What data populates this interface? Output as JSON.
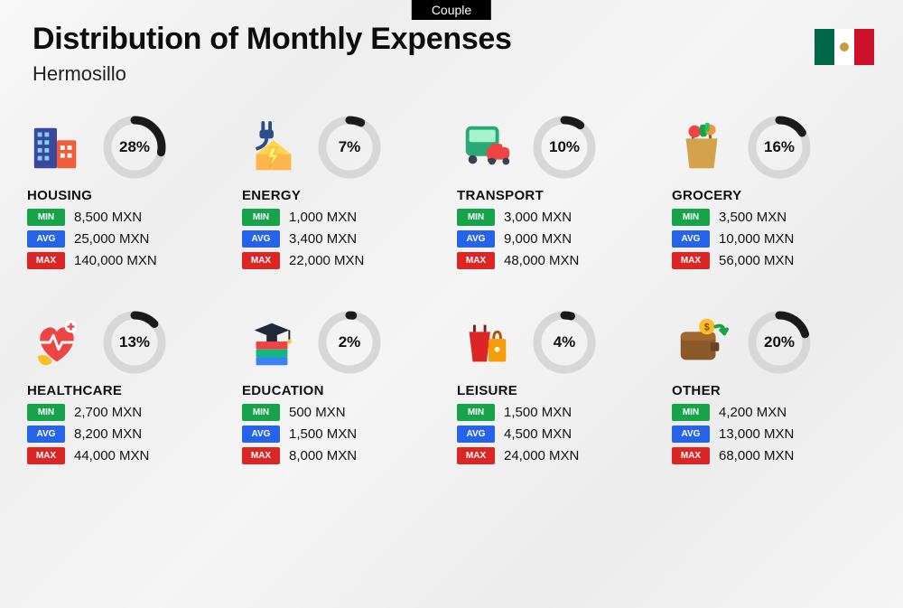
{
  "badge": "Couple",
  "title": "Distribution of Monthly Expenses",
  "subtitle": "Hermosillo",
  "currency": "MXN",
  "labels": {
    "min": "MIN",
    "avg": "AVG",
    "max": "MAX"
  },
  "ring": {
    "track": "#d7d7d7",
    "progress": "#1a1a1a",
    "stroke_width": 9,
    "radius": 30
  },
  "pill_colors": {
    "min": "#16a34a",
    "avg": "#2563eb",
    "max": "#dc2626"
  },
  "categories": [
    {
      "key": "housing",
      "name": "HOUSING",
      "pct": 28,
      "min": "8,500",
      "avg": "25,000",
      "max": "140,000"
    },
    {
      "key": "energy",
      "name": "ENERGY",
      "pct": 7,
      "min": "1,000",
      "avg": "3,400",
      "max": "22,000"
    },
    {
      "key": "transport",
      "name": "TRANSPORT",
      "pct": 10,
      "min": "3,000",
      "avg": "9,000",
      "max": "48,000"
    },
    {
      "key": "grocery",
      "name": "GROCERY",
      "pct": 16,
      "min": "3,500",
      "avg": "10,000",
      "max": "56,000"
    },
    {
      "key": "healthcare",
      "name": "HEALTHCARE",
      "pct": 13,
      "min": "2,700",
      "avg": "8,200",
      "max": "44,000"
    },
    {
      "key": "education",
      "name": "EDUCATION",
      "pct": 2,
      "min": "500",
      "avg": "1,500",
      "max": "8,000"
    },
    {
      "key": "leisure",
      "name": "LEISURE",
      "pct": 4,
      "min": "1,500",
      "avg": "4,500",
      "max": "24,000"
    },
    {
      "key": "other",
      "name": "OTHER",
      "pct": 20,
      "min": "4,200",
      "avg": "13,000",
      "max": "68,000"
    }
  ]
}
